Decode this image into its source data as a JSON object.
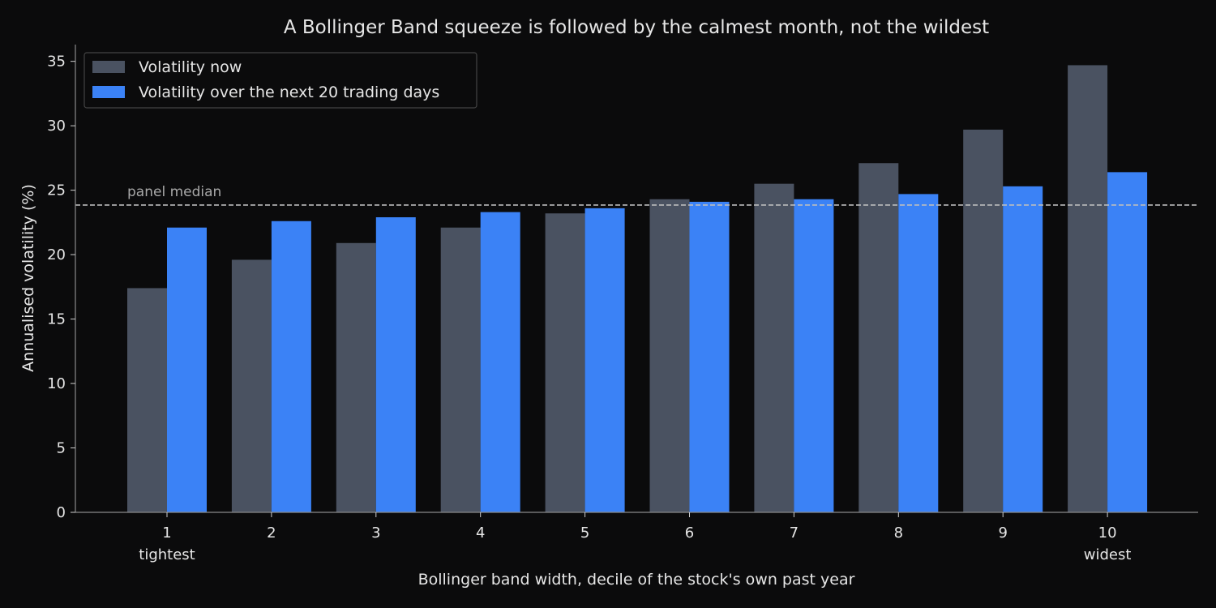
{
  "chart_data": {
    "type": "bar",
    "title": "A Bollinger Band squeeze is followed by the calmest month, not the wildest",
    "xlabel": "Bollinger band width, decile of the stock's own past year",
    "ylabel": "Annualised volatility (%)",
    "categories": [
      "1",
      "2",
      "3",
      "4",
      "5",
      "6",
      "7",
      "8",
      "9",
      "10"
    ],
    "category_sublabels": {
      "0": "tightest",
      "9": "widest"
    },
    "ylim": [
      0,
      36.3
    ],
    "yticks": [
      0,
      5,
      10,
      15,
      20,
      25,
      30,
      35
    ],
    "series": [
      {
        "name": "Volatility now",
        "color": "#4a5261",
        "values": [
          17.4,
          19.6,
          20.9,
          22.1,
          23.2,
          24.3,
          25.5,
          27.1,
          29.7,
          34.7
        ]
      },
      {
        "name": "Volatility over the next 20 trading days",
        "color": "#3b82f6",
        "values": [
          22.1,
          22.6,
          22.9,
          23.3,
          23.6,
          24.1,
          24.3,
          24.7,
          25.3,
          26.4
        ]
      }
    ],
    "reference_line": {
      "value": 23.85,
      "label": "panel median",
      "color": "#bdbdbd"
    },
    "legend_position": "top-left",
    "grid": false
  }
}
